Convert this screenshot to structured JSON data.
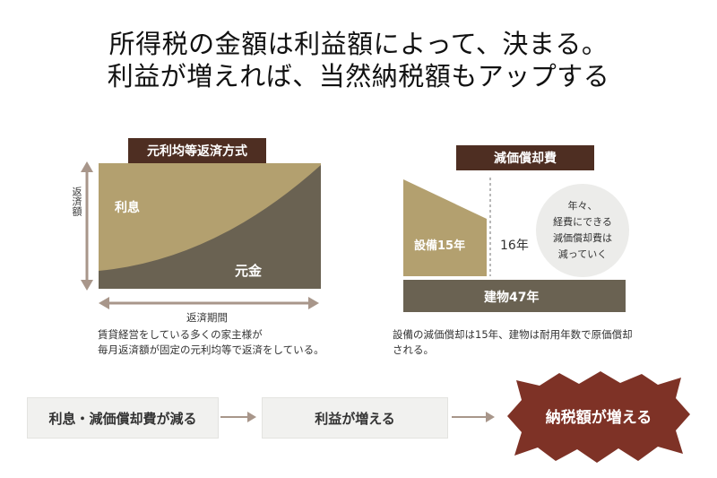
{
  "headline": {
    "line1": "所得税の金額は利益額によって、決まる。",
    "line2": "利益が増えれば、当然納税額もアップする"
  },
  "loan_panel": {
    "title": "元利均等返済方式",
    "interest_label": "利息",
    "principal_label": "元金",
    "y_axis_label": "返済額",
    "x_axis_label": "返済期間",
    "caption_line1": "賃貸経営をしている多くの家主様が",
    "caption_line2": "毎月返済額が固定の元利均等で返済をしている。"
  },
  "depreciation_panel": {
    "title": "減価償却費",
    "equipment_label": "設備15年",
    "year16_label": "16年",
    "building_label": "建物47年",
    "bubble_line1": "年々、",
    "bubble_line2": "経費にできる",
    "bubble_line3": "減価償却費は",
    "bubble_line4": "減っていく",
    "caption_line1": "設備の減価償却は15年、建物は耐用年数で原価償却",
    "caption_line2": "される。"
  },
  "flow": {
    "step1": "利息・減価償却費が減る",
    "step2": "利益が増える",
    "step3": "納税額が増える"
  },
  "colors": {
    "title_box": "#4e2e22",
    "interest_fill": "#b3a06f",
    "principal_fill": "#6a6252",
    "burst_fill": "#7e3226",
    "arrow": "#a8968a"
  }
}
